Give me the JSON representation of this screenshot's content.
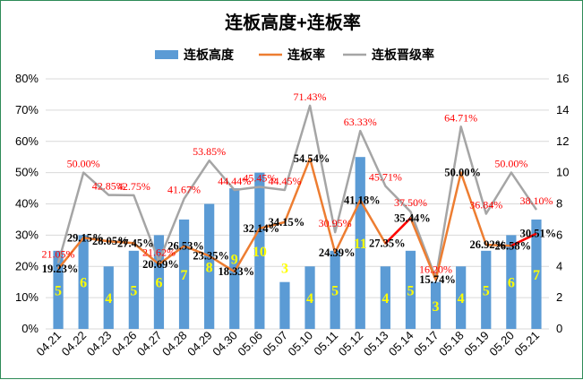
{
  "chart_data": {
    "type": "bar",
    "title": "连板高度+连板率",
    "legend": [
      "连板高度",
      "连板率",
      "连板晋级率"
    ],
    "legend_position": "top",
    "categories": [
      "04.21",
      "04.22",
      "04.23",
      "04.26",
      "04.27",
      "04.28",
      "04.29",
      "04.30",
      "05.06",
      "05.07",
      "05.10",
      "05.11",
      "05.12",
      "05.13",
      "05.14",
      "05.17",
      "05.18",
      "05.19",
      "05.20",
      "05.21"
    ],
    "left_axis": {
      "ylim": [
        0,
        80
      ],
      "ticks": [
        "0%",
        "10%",
        "20%",
        "30%",
        "40%",
        "50%",
        "60%",
        "70%",
        "80%"
      ]
    },
    "right_axis": {
      "ylim": [
        0,
        16
      ],
      "ticks": [
        "0",
        "2",
        "4",
        "6",
        "8",
        "10",
        "12",
        "14",
        "16"
      ]
    },
    "series": [
      {
        "name": "连板高度",
        "type": "bar",
        "axis": "right",
        "color": "#5b9bd5",
        "values": [
          5,
          6,
          4,
          5,
          6,
          7,
          8,
          9,
          10,
          3,
          4,
          5,
          11,
          4,
          5,
          3,
          4,
          5,
          6,
          7
        ],
        "labels": [
          "5",
          "6",
          "4",
          "5",
          "6",
          "7",
          "8",
          "9",
          "10",
          "3",
          "4",
          "5",
          "11",
          "4",
          "5",
          "3",
          "4",
          "5",
          "6",
          "7"
        ],
        "label_color": "#ffff00"
      },
      {
        "name": "连板率",
        "type": "line",
        "axis": "left",
        "color": "#ed7d31",
        "values": [
          19.23,
          29.15,
          28.05,
          27.45,
          20.69,
          26.53,
          23.35,
          18.33,
          32.14,
          34.15,
          54.54,
          24.39,
          41.18,
          27.35,
          35.44,
          15.74,
          50.0,
          26.92,
          26.58,
          30.51
        ],
        "labels": [
          "19.23%",
          "29.15%",
          "28.05%",
          "27.45%",
          "20.69%",
          "26.53%",
          "23.35%",
          "18.33%",
          "32.14%",
          "34.15%",
          "54.54%",
          "24.39%",
          "41.18%",
          "27.35%",
          "35.44%",
          "15.74%",
          "50.00%",
          "26.92%",
          "26.58%",
          "30.51%"
        ],
        "label_color": "#000000"
      },
      {
        "name": "连板晋级率",
        "type": "line",
        "axis": "left",
        "color": "#a5a5a5",
        "values": [
          21.05,
          50.0,
          42.85,
          42.75,
          21.62,
          41.67,
          53.85,
          44.44,
          45.45,
          44.45,
          71.43,
          30.95,
          63.33,
          45.71,
          37.5,
          16.2,
          64.71,
          36.84,
          50.0,
          38.1
        ],
        "labels": [
          "21.05%",
          "50.00%",
          "42.85%",
          "42.75%",
          "21.62%",
          "41.67%",
          "53.85%",
          "44.44%",
          "45.45%",
          "44.45%",
          "71.43%",
          "30.95%",
          "63.33%",
          "45.71%",
          "37.50%",
          "16.20%",
          "64.71%",
          "36.84%",
          "50.00%",
          "38.10%"
        ],
        "label_color": "#ff0000"
      }
    ],
    "highlight_segments": [
      {
        "series": "连板率",
        "from": "05.13",
        "to": "05.14",
        "color": "#ff0000"
      },
      {
        "series": "连板率",
        "from": "05.20",
        "to": "05.21",
        "color": "#ff0000"
      }
    ],
    "special_bar_labels": [
      {
        "category": "05.07",
        "color": "#ff0000"
      }
    ]
  }
}
